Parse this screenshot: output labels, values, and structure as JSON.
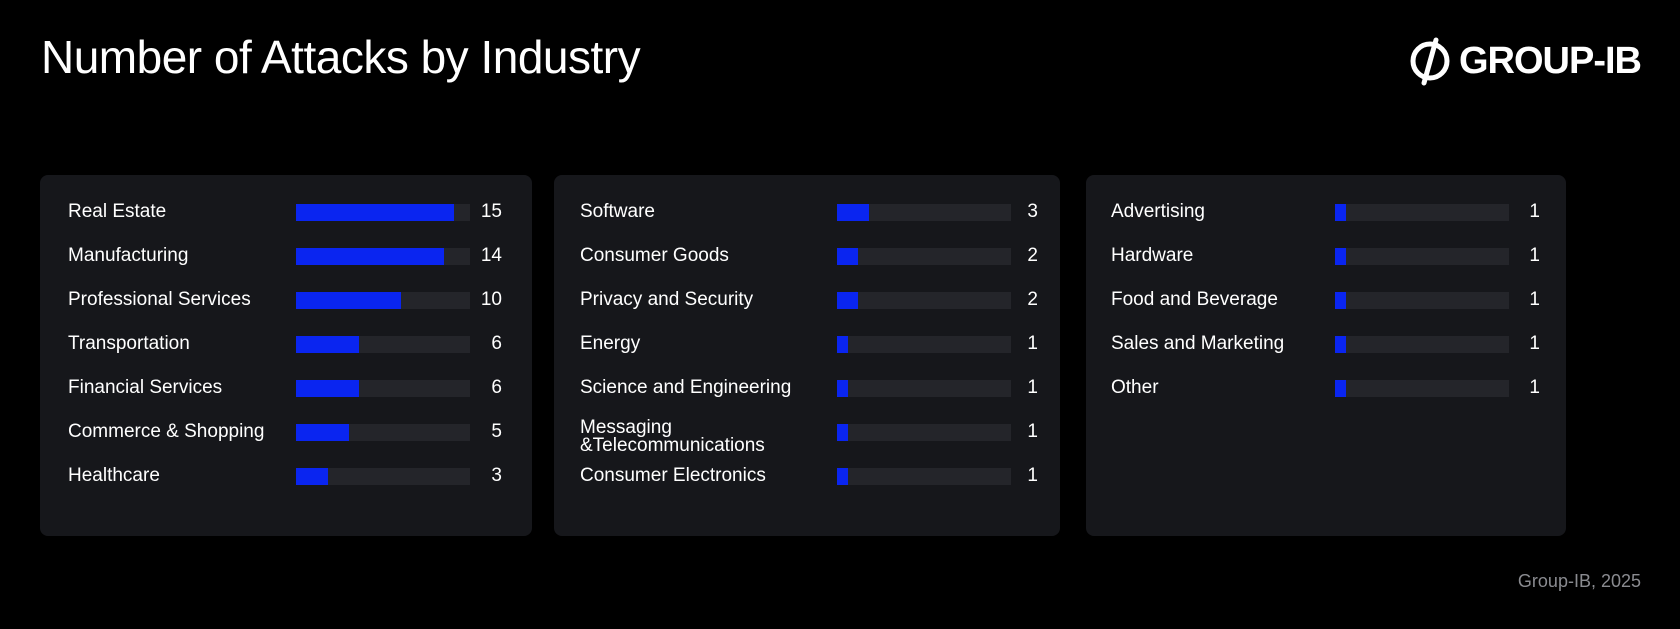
{
  "header": {
    "title": "Number of Attacks by Industry",
    "logo_text": "GROUP-IB"
  },
  "footer": {
    "source": "Group-IB, 2025"
  },
  "colors": {
    "bar": "#0a25f0",
    "track": "#24252a",
    "panel": "#16171b",
    "background": "#000000"
  },
  "chart_data": [
    {
      "type": "bar",
      "orientation": "horizontal",
      "xlim": [
        0,
        16.5
      ],
      "categories": [
        "Real Estate",
        "Manufacturing",
        "Professional Services",
        "Transportation",
        "Financial Services",
        "Commerce & Shopping",
        "Healthcare"
      ],
      "values": [
        15,
        14,
        10,
        6,
        6,
        5,
        3
      ]
    },
    {
      "type": "bar",
      "orientation": "horizontal",
      "xlim": [
        0,
        16.5
      ],
      "categories": [
        "Software",
        "Consumer Goods",
        "Privacy and Security",
        "Energy",
        "Science and Engineering",
        "Messaging &Telecommunications",
        "Consumer Electronics"
      ],
      "values": [
        3,
        2,
        2,
        1,
        1,
        1,
        1
      ]
    },
    {
      "type": "bar",
      "orientation": "horizontal",
      "xlim": [
        0,
        16.5
      ],
      "categories": [
        "Advertising",
        "Hardware",
        "Food and Beverage",
        "Sales and Marketing",
        "Other"
      ],
      "values": [
        1,
        1,
        1,
        1,
        1
      ]
    }
  ]
}
